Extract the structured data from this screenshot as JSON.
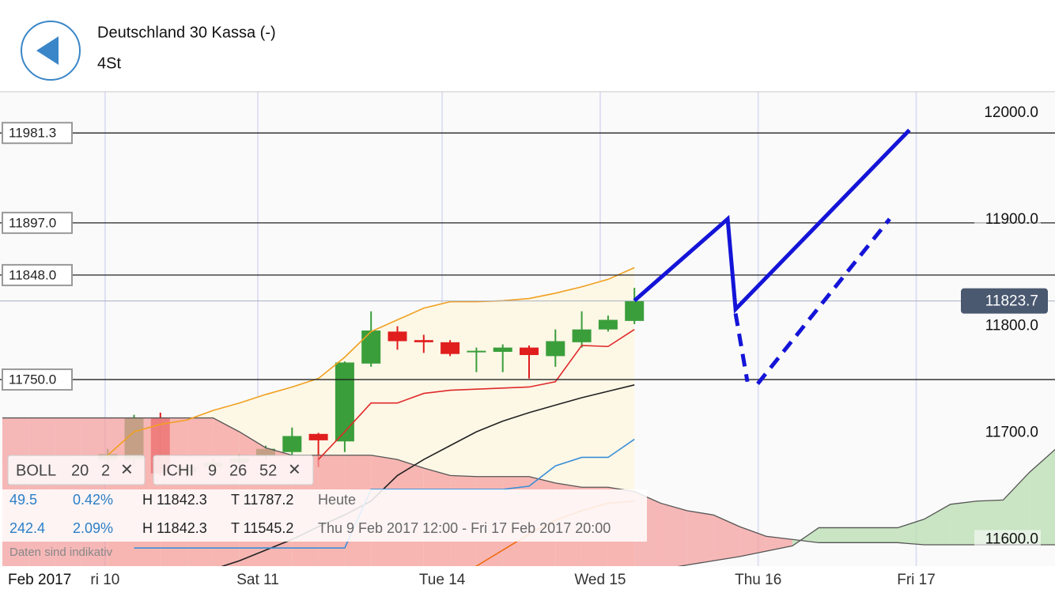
{
  "header": {
    "title": "Deutschland 30 Kassa (-)",
    "interval": "4St"
  },
  "chart_data": {
    "type": "candlestick",
    "open": [
      11675,
      11675,
      11714,
      11663,
      11668,
      11672,
      11678,
      11682,
      11699,
      11692,
      11765,
      11795,
      11787,
      11785,
      11776,
      11776,
      11780,
      11772,
      11785,
      11797,
      11805
    ],
    "high": [
      11685,
      11717,
      11719,
      11672,
      11676,
      11680,
      11688,
      11705,
      11700,
      11767,
      11814,
      11800,
      11792,
      11787,
      11780,
      11783,
      11782,
      11797,
      11814,
      11810,
      11836
    ],
    "low": [
      11670,
      11670,
      11660,
      11658,
      11664,
      11668,
      11675,
      11675,
      11668,
      11682,
      11762,
      11778,
      11775,
      11772,
      11757,
      11757,
      11751,
      11762,
      11780,
      11795,
      11802
    ],
    "close": [
      11680,
      11714,
      11662,
      11668,
      11672,
      11676,
      11685,
      11697,
      11693,
      11766,
      11796,
      11786,
      11785,
      11774,
      11777,
      11780,
      11773,
      11786,
      11797,
      11806,
      11824
    ],
    "up_color": "#3a9e3a",
    "down_color": "#e01e1e",
    "lines": [
      {
        "color": "#f0a020",
        "values": [
          null,
          null,
          null,
          null,
          11679,
          11701,
          11708,
          11712,
          11721,
          11728,
          11736,
          11743,
          11751,
          11771,
          11795,
          11806,
          11817,
          11823,
          11823,
          11824,
          11826,
          11831,
          11837,
          11844,
          11855
        ]
      },
      {
        "color": "#e02a2a",
        "values": [
          null,
          null,
          null,
          null,
          null,
          null,
          null,
          null,
          null,
          null,
          null,
          null,
          11675,
          11701,
          11728,
          11728,
          11737,
          11740,
          11741,
          11742,
          11743,
          11748,
          11782,
          11781,
          11797
        ]
      },
      {
        "color": "#222222",
        "values": [
          null,
          null,
          null,
          null,
          11540,
          11548,
          11556,
          11564,
          11572,
          11580,
          11590,
          11600,
          11612,
          11623,
          11636,
          11660,
          11675,
          11688,
          11701,
          11711,
          11719,
          11726,
          11733,
          11739,
          11745
        ]
      },
      {
        "color": "#3a8fd8",
        "values": [
          null,
          null,
          null,
          null,
          null,
          11592,
          11592,
          11592,
          11592,
          11592,
          11592,
          11592,
          11592,
          11592,
          11647,
          11647,
          11647,
          11647,
          11647,
          11647,
          11650,
          11669,
          11677,
          11677,
          11694
        ]
      },
      {
        "color": "#f06a10",
        "values": [
          null,
          null,
          null,
          null,
          null,
          null,
          null,
          null,
          null,
          null,
          null,
          null,
          null,
          null,
          null,
          null,
          null,
          11565,
          11575,
          11590,
          11605,
          11618,
          11627,
          11634,
          11636
        ]
      }
    ],
    "cloud_a": [
      11550,
      11550,
      11550,
      11550,
      11550,
      11550,
      11550,
      11550,
      11550,
      11550,
      11550,
      11550,
      11550,
      11550,
      11550,
      11550,
      11550,
      11550,
      11550,
      11550,
      11550,
      11555,
      11560,
      11565,
      11568,
      11572,
      11576,
      11580,
      11584,
      11589,
      11594,
      11611,
      11611,
      11611,
      11611,
      11619,
      11633,
      11636,
      11637,
      11663,
      11685
    ],
    "cloud_b": [
      11714,
      11714,
      11714,
      11714,
      11714,
      11714,
      11714,
      11714,
      11714,
      11701,
      11686,
      11679,
      11679,
      11679,
      11679,
      11675,
      11667,
      11660,
      11659,
      11659,
      11659,
      11653,
      11649,
      11649,
      11645,
      11634,
      11627,
      11623,
      11612,
      11603,
      11600,
      11597,
      11597,
      11597,
      11597,
      11595,
      11595,
      11595,
      11595,
      11595,
      11595
    ],
    "cloud_colors": [
      "#f4a0a0",
      "#b8ddb0"
    ],
    "xlim": [
      -0.09,
      39.97
    ],
    "ylim": [
      11575,
      12020
    ],
    "xticks": [
      {
        "value": 3.9,
        "label": "ri 10"
      },
      {
        "value": 9.7,
        "label": "Sat 11"
      },
      {
        "value": 16.7,
        "label": "Tue 14"
      },
      {
        "value": 22.7,
        "label": "Wed 15"
      },
      {
        "value": 28.7,
        "label": "Thu 16"
      },
      {
        "value": 34.7,
        "label": "Fri 17"
      }
    ],
    "yticks": [
      {
        "value": 11600,
        "label": "11600.0"
      },
      {
        "value": 11700,
        "label": "11700.0"
      },
      {
        "value": 11800,
        "label": "11800.0"
      },
      {
        "value": 11900,
        "label": "11900.0"
      },
      {
        "value": 12000,
        "label": "12000.0"
      }
    ],
    "levels": [
      {
        "value": 11981.3,
        "label": "11981.3"
      },
      {
        "value": 11897.0,
        "label": "11897.0"
      },
      {
        "value": 11848.0,
        "label": "11848.0"
      },
      {
        "value": 11750.0,
        "label": "11750.0"
      }
    ],
    "current_price": {
      "value": 11823.7,
      "label": "11823.7"
    },
    "drawings": [
      {
        "color": "#1414d8",
        "dashed": false,
        "points": [
          [
            24,
            11824
          ],
          [
            27.54,
            11900.6
          ],
          [
            27.84,
            11816
          ],
          [
            34.44,
            11984
          ]
        ]
      },
      {
        "color": "#1414d8",
        "dashed": true,
        "points": [
          [
            27.84,
            11812
          ],
          [
            28.29,
            11748
          ]
        ]
      },
      {
        "color": "#1414d8",
        "dashed": true,
        "points": [
          [
            28.68,
            11746
          ],
          [
            33.69,
            11900.6
          ]
        ]
      }
    ],
    "period_label": "Feb 2017"
  },
  "indicators": [
    {
      "name": "BOLL",
      "params": [
        "20",
        "2"
      ],
      "close": "✕"
    },
    {
      "name": "ICHI",
      "params": [
        "9",
        "26",
        "52"
      ],
      "close": "✕"
    }
  ],
  "stats": [
    {
      "change": "49.5",
      "percent": "0.42%",
      "high": "H 11842.3",
      "low": "T 11787.2",
      "period": "Heute"
    },
    {
      "change": "242.4",
      "percent": "2.09%",
      "high": "H 11842.3",
      "low": "T 11545.2",
      "period": "Thu 9 Feb 2017 12:00 - Fri 17 Feb 2017 20:00"
    }
  ],
  "disclaimer": "Daten sind indikativ"
}
